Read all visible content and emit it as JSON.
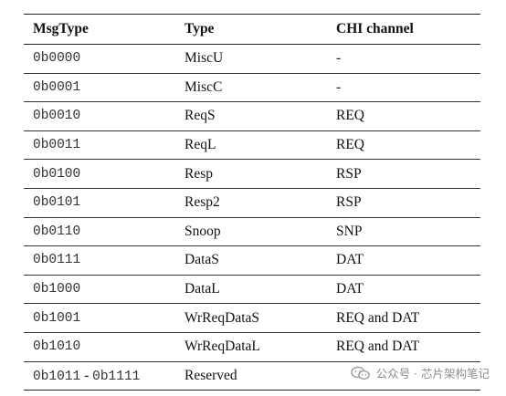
{
  "table": {
    "headers": [
      "MsgType",
      "Type",
      "CHI channel"
    ],
    "rows": [
      {
        "msgtype": "0b0000",
        "type": "MiscU",
        "channel": "-"
      },
      {
        "msgtype": "0b0001",
        "type": "MiscC",
        "channel": "-"
      },
      {
        "msgtype": "0b0010",
        "type": "ReqS",
        "channel": "REQ"
      },
      {
        "msgtype": "0b0011",
        "type": "ReqL",
        "channel": "REQ"
      },
      {
        "msgtype": "0b0100",
        "type": "Resp",
        "channel": "RSP"
      },
      {
        "msgtype": "0b0101",
        "type": "Resp2",
        "channel": "RSP"
      },
      {
        "msgtype": "0b0110",
        "type": "Snoop",
        "channel": "SNP"
      },
      {
        "msgtype": "0b0111",
        "type": "DataS",
        "channel": "DAT"
      },
      {
        "msgtype": "0b1000",
        "type": "DataL",
        "channel": "DAT"
      },
      {
        "msgtype": "0b1001",
        "type": "WrReqDataS",
        "channel": "REQ and DAT"
      },
      {
        "msgtype": "0b1010",
        "type": "WrReqDataL",
        "channel": "REQ and DAT"
      },
      {
        "msgtype_start": "0b1011",
        "msgtype_sep": " - ",
        "msgtype_end": "0b1111",
        "type": "Reserved",
        "channel": ""
      }
    ]
  },
  "watermark": {
    "text": "公众号 · 芯片架构笔记",
    "icon": "wechat-icon"
  }
}
